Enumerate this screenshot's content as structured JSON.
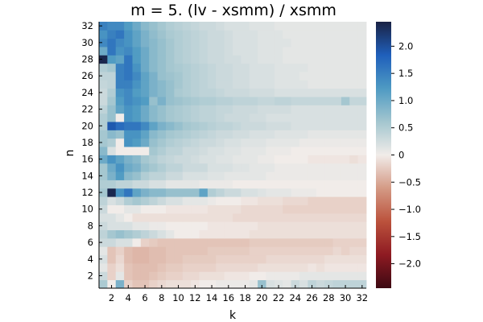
{
  "chart_data": {
    "type": "heatmap",
    "title": "m = 5. (lv - xsmm) / xsmm",
    "xlabel": "k",
    "ylabel": "n",
    "x": [
      1,
      2,
      3,
      4,
      5,
      6,
      7,
      8,
      9,
      10,
      11,
      12,
      13,
      14,
      15,
      16,
      17,
      18,
      19,
      20,
      21,
      22,
      23,
      24,
      25,
      26,
      27,
      28,
      29,
      30,
      31,
      32
    ],
    "y": [
      1,
      2,
      3,
      4,
      5,
      6,
      7,
      8,
      9,
      10,
      11,
      12,
      13,
      14,
      15,
      16,
      17,
      18,
      19,
      20,
      21,
      22,
      23,
      24,
      25,
      26,
      27,
      28,
      29,
      30,
      31,
      32
    ],
    "xticks": [
      "2",
      "4",
      "6",
      "8",
      "10",
      "12",
      "14",
      "16",
      "18",
      "20",
      "22",
      "24",
      "26",
      "28",
      "30",
      "32"
    ],
    "yticks": [
      "2",
      "4",
      "6",
      "8",
      "10",
      "12",
      "14",
      "16",
      "18",
      "20",
      "22",
      "24",
      "26",
      "28",
      "30",
      "32"
    ],
    "xlim": [
      0.5,
      32.5
    ],
    "ylim": [
      0.5,
      32.5
    ],
    "colorbar": {
      "range": [
        -2.45,
        2.45
      ],
      "ticks": [
        "−2.0",
        "−1.5",
        "−1.0",
        "−0.5",
        "0",
        "0.5",
        "1.0",
        "1.5",
        "2.0"
      ],
      "colormap": "balance",
      "colors": [
        "#3c0912",
        "#8e1a22",
        "#bb523c",
        "#d49a85",
        "#f1ece9",
        "#a3c6cf",
        "#4e9ac3",
        "#1f5fbb",
        "#1a2244"
      ]
    },
    "values": [
      [
        0.55,
        0.0,
        0.9,
        -0.2,
        -0.3,
        -0.3,
        -0.2,
        -0.15,
        -0.1,
        -0.1,
        -0.1,
        -0.05,
        0.0,
        0.0,
        0.05,
        0.05,
        0.05,
        0.05,
        0.1,
        0.7,
        0.2,
        0.15,
        0.1,
        0.3,
        0.2,
        0.4,
        0.3,
        0.35,
        0.4,
        0.4,
        0.4,
        0.4
      ],
      [
        0.3,
        -0.2,
        0.1,
        -0.3,
        -0.35,
        -0.35,
        -0.3,
        -0.25,
        -0.2,
        -0.2,
        -0.15,
        -0.15,
        -0.1,
        -0.1,
        -0.1,
        -0.05,
        -0.05,
        -0.05,
        0.0,
        0.0,
        0.05,
        0.05,
        0.05,
        0.05,
        0.1,
        0.1,
        0.1,
        0.1,
        0.1,
        0.1,
        0.1,
        0.1
      ],
      [
        0.1,
        -0.2,
        -0.1,
        -0.3,
        -0.35,
        -0.35,
        -0.35,
        -0.3,
        -0.25,
        -0.25,
        -0.2,
        -0.2,
        -0.2,
        -0.2,
        -0.15,
        -0.15,
        -0.15,
        -0.15,
        -0.15,
        -0.1,
        -0.1,
        -0.1,
        -0.1,
        -0.1,
        -0.1,
        -0.05,
        -0.1,
        -0.05,
        -0.05,
        -0.05,
        -0.05,
        -0.05
      ],
      [
        0.2,
        -0.3,
        -0.15,
        -0.35,
        -0.4,
        -0.4,
        -0.35,
        -0.35,
        -0.3,
        -0.3,
        -0.25,
        -0.25,
        -0.25,
        -0.25,
        -0.2,
        -0.2,
        -0.2,
        -0.2,
        -0.2,
        -0.2,
        -0.15,
        -0.15,
        -0.15,
        -0.15,
        -0.15,
        -0.15,
        -0.15,
        -0.1,
        -0.1,
        -0.1,
        -0.1,
        -0.1
      ],
      [
        0.1,
        -0.3,
        -0.2,
        -0.35,
        -0.4,
        -0.4,
        -0.35,
        -0.35,
        -0.3,
        -0.3,
        -0.3,
        -0.3,
        -0.3,
        -0.25,
        -0.25,
        -0.25,
        -0.25,
        -0.25,
        -0.2,
        -0.2,
        -0.2,
        -0.2,
        -0.2,
        -0.2,
        -0.2,
        -0.2,
        -0.2,
        -0.2,
        -0.15,
        -0.2,
        -0.15,
        -0.15
      ],
      [
        0.3,
        0.3,
        0.2,
        0.2,
        0.0,
        -0.2,
        -0.25,
        -0.3,
        -0.3,
        -0.3,
        -0.3,
        -0.3,
        -0.3,
        -0.3,
        -0.3,
        -0.3,
        -0.3,
        -0.3,
        -0.25,
        -0.25,
        -0.25,
        -0.25,
        -0.25,
        -0.25,
        -0.25,
        -0.25,
        -0.25,
        -0.25,
        -0.2,
        -0.2,
        -0.2,
        -0.2
      ],
      [
        0.4,
        0.6,
        0.7,
        0.6,
        0.5,
        0.4,
        0.3,
        0.2,
        0.1,
        0.0,
        0.0,
        0.0,
        -0.05,
        -0.05,
        -0.05,
        -0.05,
        -0.05,
        -0.05,
        -0.1,
        -0.1,
        -0.1,
        -0.1,
        -0.1,
        -0.1,
        -0.1,
        -0.1,
        -0.1,
        -0.1,
        -0.1,
        -0.1,
        -0.1,
        -0.1
      ],
      [
        0.3,
        0.2,
        0.2,
        0.2,
        0.1,
        0.1,
        0.05,
        0.05,
        0.0,
        0.0,
        0.0,
        0.0,
        0.0,
        -0.05,
        -0.05,
        -0.05,
        -0.05,
        -0.05,
        -0.05,
        -0.1,
        -0.1,
        -0.1,
        -0.1,
        -0.1,
        -0.1,
        -0.1,
        -0.1,
        -0.1,
        -0.1,
        -0.1,
        -0.1,
        -0.1
      ],
      [
        0.2,
        0.2,
        0.1,
        0.0,
        -0.1,
        -0.1,
        -0.1,
        -0.1,
        -0.1,
        -0.1,
        -0.1,
        -0.1,
        -0.1,
        -0.1,
        -0.1,
        -0.1,
        -0.15,
        -0.15,
        -0.15,
        -0.15,
        -0.15,
        -0.15,
        -0.15,
        -0.15,
        -0.15,
        -0.15,
        -0.15,
        -0.15,
        -0.15,
        -0.15,
        -0.15,
        -0.15
      ],
      [
        0.3,
        0.0,
        0.0,
        0.1,
        0.1,
        0.0,
        0.0,
        0.0,
        -0.05,
        -0.05,
        -0.05,
        -0.05,
        -0.05,
        -0.1,
        -0.1,
        -0.1,
        -0.1,
        -0.15,
        -0.15,
        -0.15,
        -0.15,
        -0.15,
        -0.2,
        -0.2,
        -0.2,
        -0.2,
        -0.2,
        -0.2,
        -0.2,
        -0.2,
        -0.2,
        -0.2
      ],
      [
        0.4,
        0.2,
        0.3,
        0.5,
        0.6,
        0.5,
        0.4,
        0.3,
        0.2,
        0.2,
        0.1,
        0.1,
        0.1,
        0.05,
        0.0,
        0.0,
        0.0,
        -0.05,
        -0.05,
        -0.1,
        -0.1,
        -0.1,
        -0.15,
        -0.15,
        -0.15,
        -0.2,
        -0.2,
        -0.2,
        -0.2,
        -0.2,
        -0.2,
        -0.2
      ],
      [
        0.6,
        2.4,
        1.3,
        1.6,
        1.1,
        0.9,
        0.8,
        0.8,
        0.7,
        0.7,
        0.7,
        0.7,
        1.1,
        0.5,
        0.4,
        0.3,
        0.3,
        0.2,
        0.2,
        0.15,
        0.1,
        0.1,
        0.1,
        0.05,
        0.05,
        0.05,
        0.0,
        0.0,
        0.0,
        0.0,
        0.0,
        0.0
      ],
      [
        0.5,
        0.5,
        0.4,
        0.4,
        0.3,
        0.3,
        0.2,
        0.2,
        0.1,
        0.1,
        0.1,
        0.1,
        0.05,
        0.05,
        0.05,
        0.05,
        0.0,
        0.0,
        0.0,
        0.0,
        0.0,
        0.0,
        0.0,
        0.0,
        0.0,
        0.0,
        0.0,
        0.0,
        0.0,
        0.0,
        0.0,
        0.0
      ],
      [
        0.6,
        0.9,
        1.2,
        0.8,
        0.7,
        0.5,
        0.4,
        0.4,
        0.3,
        0.3,
        0.2,
        0.2,
        0.2,
        0.15,
        0.15,
        0.1,
        0.1,
        0.1,
        0.1,
        0.1,
        0.05,
        0.05,
        0.05,
        0.05,
        0.05,
        0.05,
        0.05,
        0.05,
        0.05,
        0.05,
        0.05,
        0.05
      ],
      [
        0.6,
        1.0,
        1.3,
        1.0,
        0.9,
        0.7,
        0.6,
        0.5,
        0.4,
        0.4,
        0.3,
        0.3,
        0.3,
        0.2,
        0.2,
        0.2,
        0.15,
        0.15,
        0.1,
        0.1,
        0.1,
        0.05,
        0.05,
        0.05,
        0.05,
        0.05,
        0.05,
        0.05,
        0.05,
        0.05,
        0.05,
        0.05
      ],
      [
        1.0,
        1.3,
        1.1,
        0.9,
        0.8,
        0.6,
        0.5,
        0.4,
        0.35,
        0.3,
        0.3,
        0.25,
        0.2,
        0.2,
        0.15,
        0.15,
        0.1,
        0.1,
        0.1,
        0.05,
        0.05,
        0.0,
        0.0,
        0.0,
        0.0,
        -0.05,
        -0.05,
        -0.05,
        -0.05,
        -0.05,
        -0.1,
        -0.05
      ],
      [
        0.8,
        0.2,
        0.0,
        0.0,
        0.0,
        0.0,
        0.6,
        0.5,
        0.4,
        0.4,
        0.3,
        0.3,
        0.25,
        0.2,
        0.2,
        0.15,
        0.15,
        0.1,
        0.1,
        0.1,
        0.05,
        0.05,
        0.05,
        0.0,
        0.0,
        0.0,
        0.0,
        0.0,
        0.0,
        0.0,
        0.0,
        0.0
      ],
      [
        0.6,
        0.5,
        0.0,
        1.3,
        1.2,
        1.0,
        0.7,
        0.6,
        0.5,
        0.45,
        0.4,
        0.35,
        0.3,
        0.3,
        0.25,
        0.2,
        0.2,
        0.15,
        0.15,
        0.15,
        0.1,
        0.1,
        0.1,
        0.1,
        0.05,
        0.05,
        0.05,
        0.05,
        0.05,
        0.05,
        0.05,
        0.05
      ],
      [
        0.6,
        0.8,
        0.7,
        1.3,
        1.3,
        1.1,
        0.8,
        0.7,
        0.6,
        0.55,
        0.5,
        0.45,
        0.4,
        0.35,
        0.3,
        0.3,
        0.25,
        0.25,
        0.2,
        0.2,
        0.2,
        0.15,
        0.15,
        0.15,
        0.15,
        0.1,
        0.1,
        0.1,
        0.1,
        0.1,
        0.1,
        0.1
      ],
      [
        0.5,
        1.9,
        1.7,
        1.6,
        1.6,
        1.4,
        1.1,
        0.9,
        0.8,
        0.7,
        0.6,
        0.55,
        0.5,
        0.45,
        0.4,
        0.4,
        0.35,
        0.3,
        0.3,
        0.3,
        0.25,
        0.25,
        0.25,
        0.2,
        0.2,
        0.2,
        0.2,
        0.2,
        0.2,
        0.2,
        0.2,
        0.2
      ],
      [
        0.5,
        0.7,
        0.0,
        1.3,
        1.2,
        1.0,
        0.8,
        0.7,
        0.6,
        0.55,
        0.5,
        0.45,
        0.4,
        0.4,
        0.35,
        0.3,
        0.3,
        0.3,
        0.25,
        0.25,
        0.2,
        0.2,
        0.2,
        0.2,
        0.2,
        0.2,
        0.2,
        0.2,
        0.2,
        0.2,
        0.2,
        0.2
      ],
      [
        0.4,
        0.7,
        1.1,
        1.3,
        1.2,
        1.0,
        0.8,
        0.7,
        0.6,
        0.55,
        0.5,
        0.45,
        0.4,
        0.4,
        0.35,
        0.35,
        0.3,
        0.3,
        0.3,
        0.25,
        0.25,
        0.25,
        0.25,
        0.2,
        0.2,
        0.2,
        0.2,
        0.2,
        0.2,
        0.2,
        0.2,
        0.2
      ],
      [
        0.3,
        0.6,
        1.2,
        1.4,
        1.3,
        1.2,
        0.7,
        0.9,
        0.7,
        0.65,
        0.6,
        0.55,
        0.5,
        0.5,
        0.45,
        0.45,
        0.4,
        0.4,
        0.4,
        0.35,
        0.35,
        0.4,
        0.4,
        0.35,
        0.35,
        0.35,
        0.35,
        0.35,
        0.35,
        0.6,
        0.35,
        0.35
      ],
      [
        0.3,
        0.5,
        1.3,
        1.4,
        1.2,
        1.1,
        0.9,
        0.8,
        0.7,
        0.55,
        0.5,
        0.45,
        0.4,
        0.4,
        0.35,
        0.3,
        0.3,
        0.3,
        0.25,
        0.25,
        0.25,
        0.2,
        0.2,
        0.2,
        0.2,
        0.2,
        0.2,
        0.2,
        0.2,
        0.2,
        0.2,
        0.2
      ],
      [
        0.35,
        0.4,
        1.5,
        1.5,
        1.3,
        1.1,
        0.9,
        0.8,
        0.7,
        0.6,
        0.5,
        0.45,
        0.4,
        0.35,
        0.3,
        0.3,
        0.25,
        0.25,
        0.2,
        0.2,
        0.2,
        0.15,
        0.15,
        0.15,
        0.15,
        0.1,
        0.1,
        0.1,
        0.1,
        0.1,
        0.1,
        0.1
      ],
      [
        0.4,
        0.4,
        1.5,
        1.6,
        1.4,
        1.1,
        0.9,
        0.7,
        0.65,
        0.6,
        0.5,
        0.45,
        0.4,
        0.35,
        0.3,
        0.3,
        0.25,
        0.25,
        0.2,
        0.2,
        0.2,
        0.15,
        0.15,
        0.15,
        0.1,
        0.1,
        0.1,
        0.1,
        0.1,
        0.1,
        0.1,
        0.1
      ],
      [
        0.5,
        0.6,
        1.5,
        1.6,
        1.3,
        1.0,
        0.8,
        0.7,
        0.6,
        0.55,
        0.5,
        0.45,
        0.4,
        0.35,
        0.3,
        0.3,
        0.25,
        0.25,
        0.2,
        0.2,
        0.2,
        0.15,
        0.15,
        0.15,
        0.15,
        0.1,
        0.1,
        0.1,
        0.1,
        0.1,
        0.1,
        0.1
      ],
      [
        2.4,
        1.2,
        1.1,
        1.6,
        1.2,
        1.0,
        0.8,
        0.7,
        0.6,
        0.5,
        0.45,
        0.4,
        0.35,
        0.3,
        0.3,
        0.25,
        0.25,
        0.2,
        0.2,
        0.15,
        0.15,
        0.15,
        0.1,
        0.1,
        0.1,
        0.1,
        0.1,
        0.1,
        0.1,
        0.1,
        0.1,
        0.1
      ],
      [
        1.0,
        1.6,
        1.3,
        1.4,
        1.2,
        1.0,
        0.8,
        0.7,
        0.6,
        0.5,
        0.45,
        0.4,
        0.35,
        0.3,
        0.3,
        0.25,
        0.2,
        0.2,
        0.2,
        0.15,
        0.15,
        0.15,
        0.1,
        0.1,
        0.1,
        0.1,
        0.1,
        0.1,
        0.1,
        0.1,
        0.1,
        0.1
      ],
      [
        1.4,
        1.6,
        1.4,
        1.3,
        1.1,
        0.9,
        0.8,
        0.7,
        0.6,
        0.5,
        0.45,
        0.4,
        0.35,
        0.3,
        0.3,
        0.25,
        0.2,
        0.2,
        0.2,
        0.15,
        0.15,
        0.15,
        0.15,
        0.1,
        0.1,
        0.1,
        0.1,
        0.1,
        0.1,
        0.1,
        0.1,
        0.1
      ],
      [
        1.3,
        1.5,
        1.6,
        1.3,
        1.1,
        0.9,
        0.75,
        0.65,
        0.55,
        0.5,
        0.45,
        0.4,
        0.35,
        0.3,
        0.3,
        0.25,
        0.2,
        0.2,
        0.2,
        0.15,
        0.15,
        0.15,
        0.1,
        0.1,
        0.1,
        0.1,
        0.1,
        0.1,
        0.1,
        0.1,
        0.1,
        0.1
      ],
      [
        1.5,
        1.4,
        1.4,
        1.2,
        1.0,
        0.8,
        0.7,
        0.6,
        0.5,
        0.45,
        0.4,
        0.35,
        0.3,
        0.3,
        0.25,
        0.2,
        0.2,
        0.2,
        0.15,
        0.15,
        0.15,
        0.1,
        0.1,
        0.1,
        0.1,
        0.1,
        0.1,
        0.1,
        0.1,
        0.1,
        0.1,
        0.1
      ]
    ]
  }
}
